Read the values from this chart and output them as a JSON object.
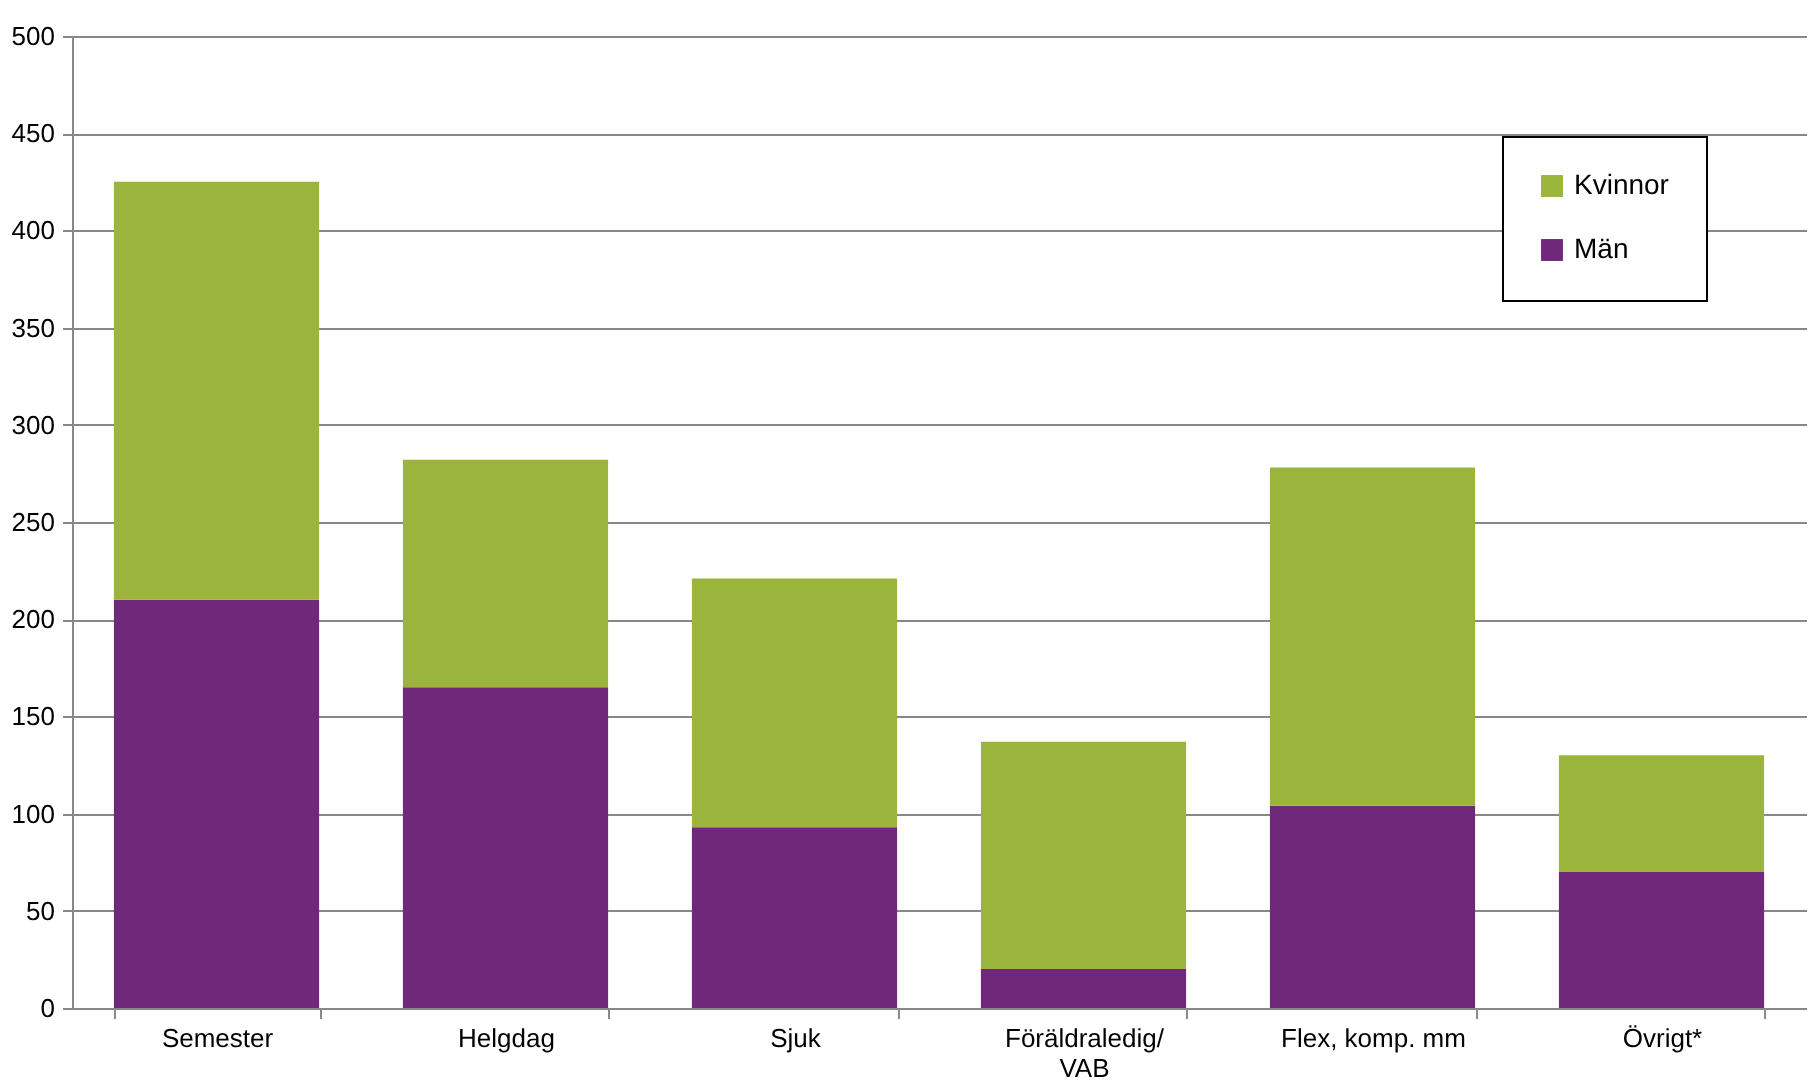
{
  "chart_data": {
    "type": "bar",
    "stacked": true,
    "categories": [
      "Semester",
      "Helgdag",
      "Sjuk",
      "Föräldraledig/VAB",
      "Flex, komp. mm",
      "Övrigt*"
    ],
    "series": [
      {
        "name": "Män",
        "color": "#70287a",
        "values": [
          210,
          165,
          93,
          20,
          104,
          70
        ]
      },
      {
        "name": "Kvinnor",
        "color": "#9bb53c",
        "values": [
          215,
          117,
          128,
          117,
          174,
          60
        ]
      }
    ],
    "ylim": [
      0,
      500
    ],
    "yticks": [
      0,
      50,
      100,
      150,
      200,
      250,
      300,
      350,
      400,
      450,
      500
    ],
    "grid": "y",
    "legend": "top right"
  }
}
